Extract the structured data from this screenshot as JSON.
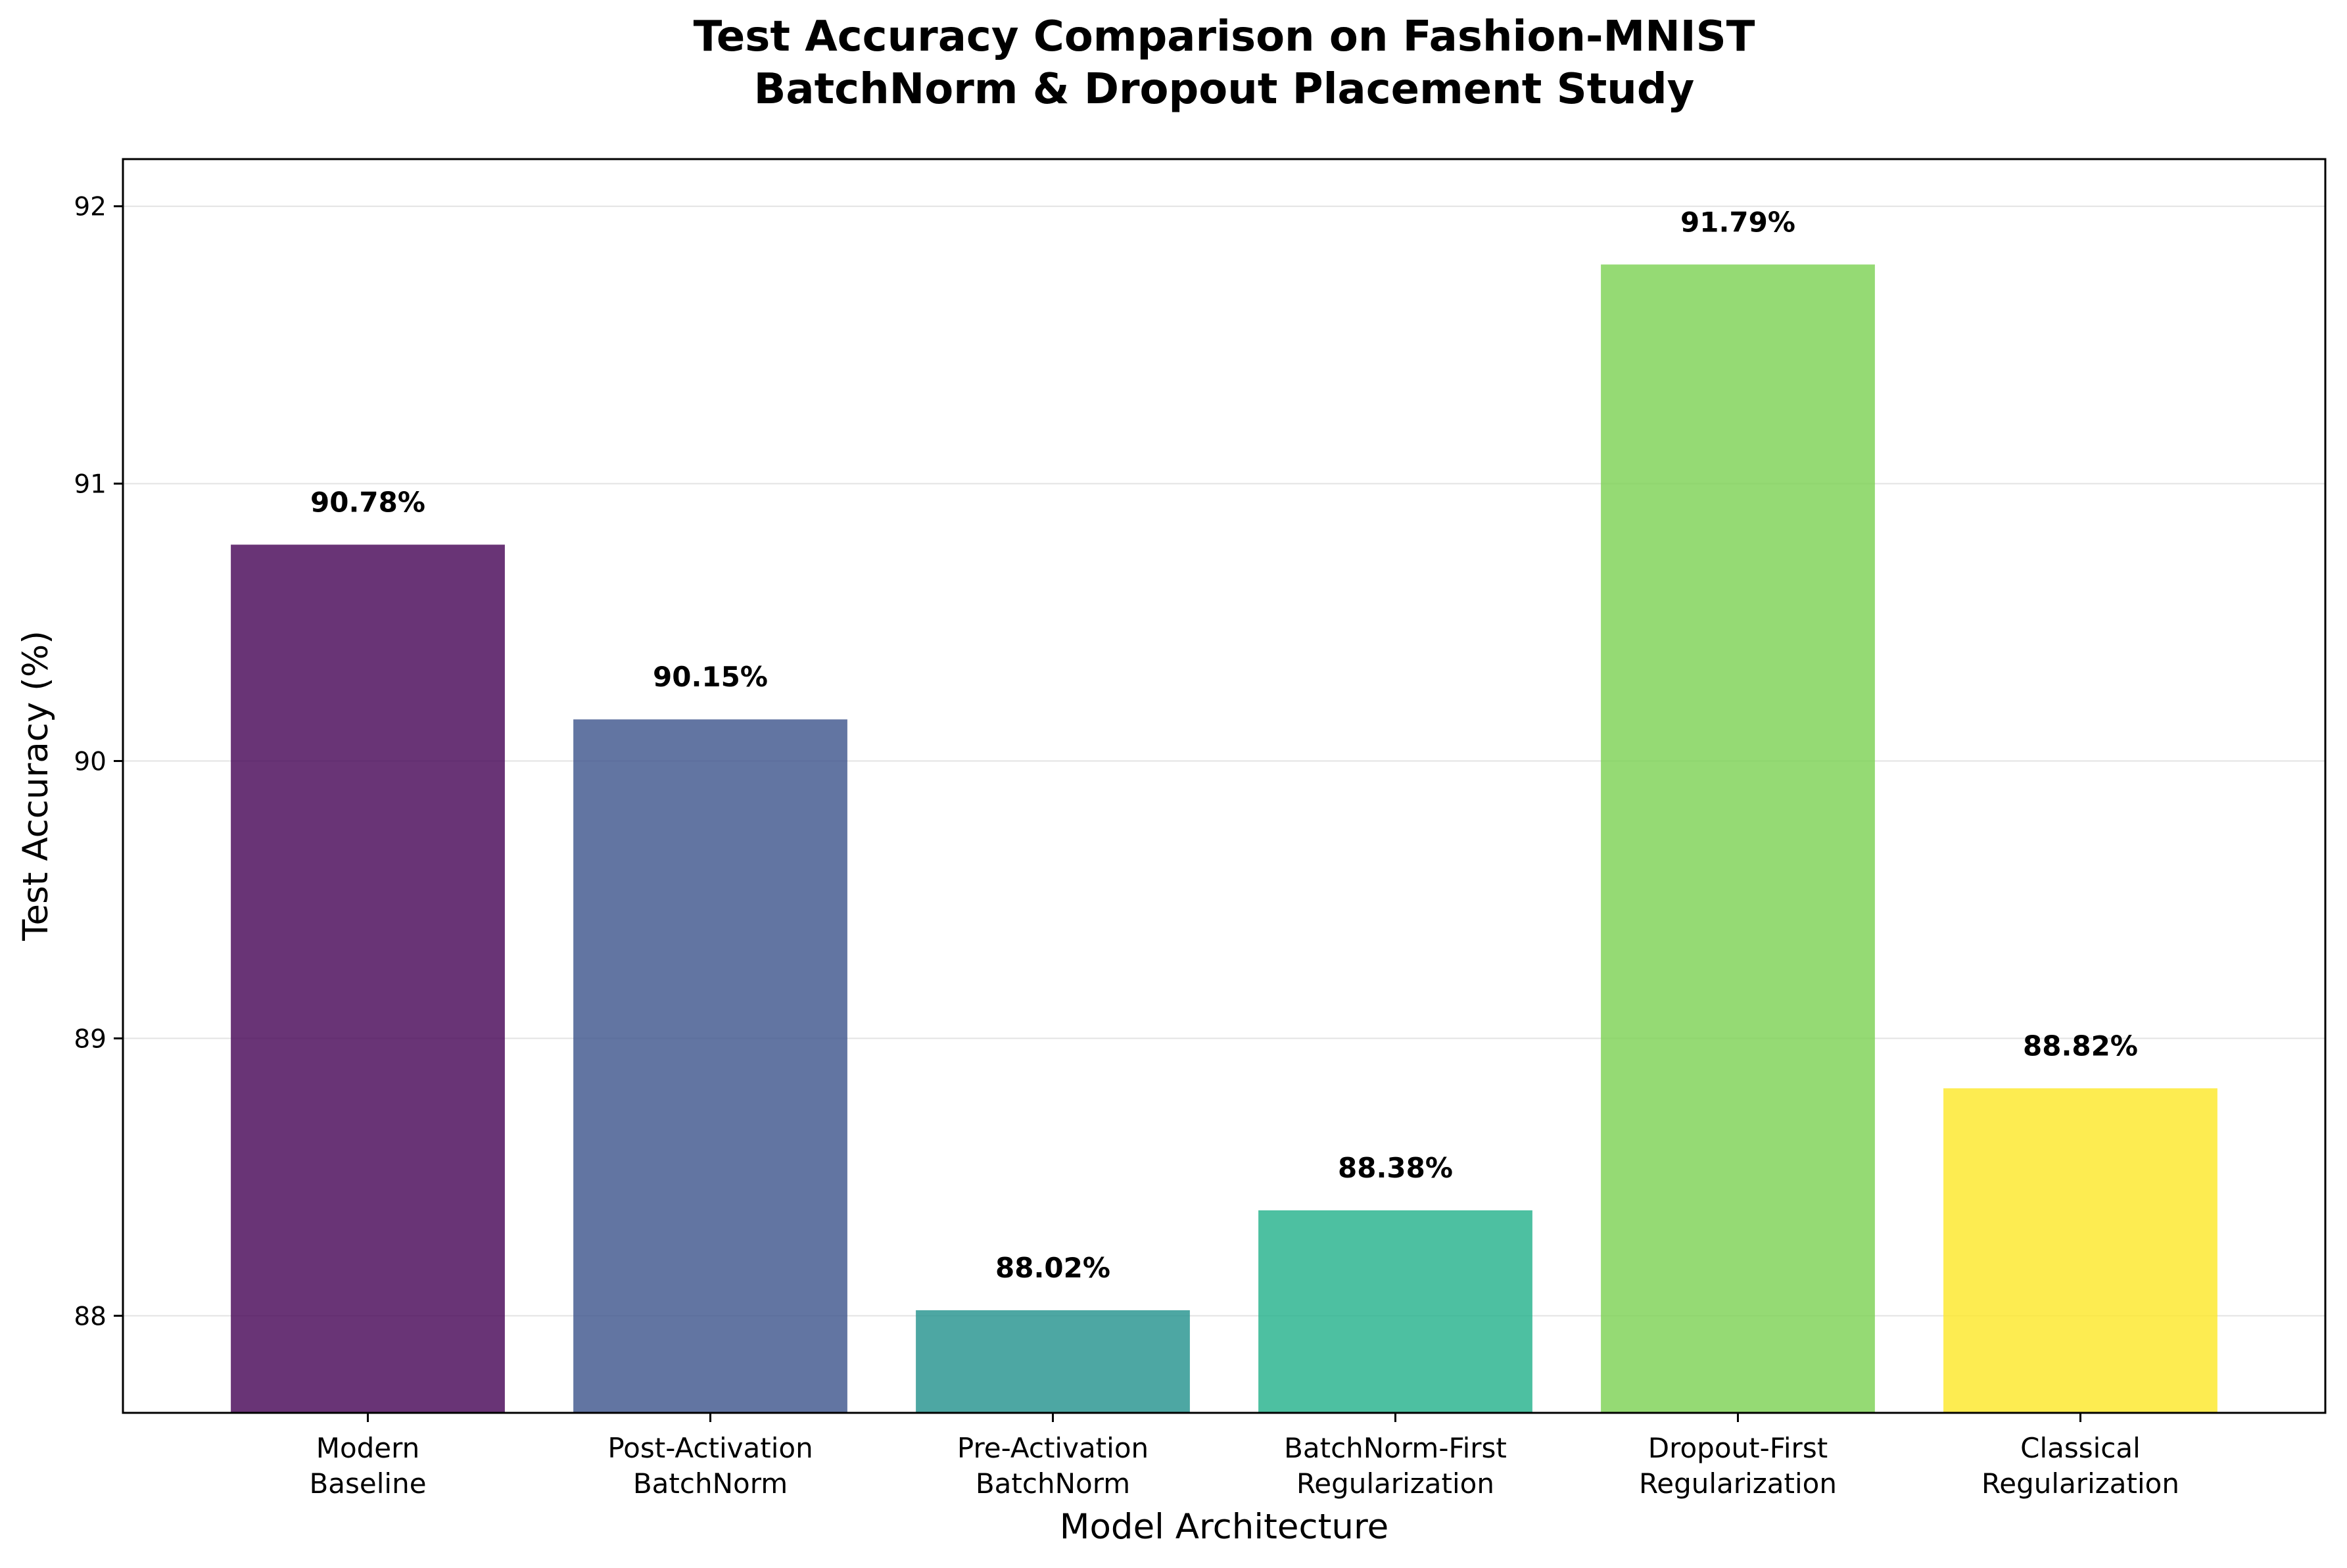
{
  "chart_data": {
    "type": "bar",
    "title": "Test Accuracy Comparison on Fashion-MNIST",
    "subtitle": "BatchNorm & Dropout Placement Study",
    "xlabel": "Model Architecture",
    "ylabel": "Test Accuracy (%)",
    "ylim": [
      87.65,
      92.17
    ],
    "yticks": [
      "88",
      "89",
      "90",
      "91",
      "92"
    ],
    "grid": "horizontal",
    "legend": "none",
    "categories": [
      [
        "Modern",
        "Baseline"
      ],
      [
        "Post-Activation",
        "BatchNorm"
      ],
      [
        "Pre-Activation",
        "BatchNorm"
      ],
      [
        "BatchNorm-First",
        "Regularization"
      ],
      [
        "Dropout-First",
        "Regularization"
      ],
      [
        "Classical",
        "Regularization"
      ]
    ],
    "values": [
      90.78,
      90.15,
      88.02,
      88.38,
      91.79,
      88.82
    ],
    "value_labels": [
      "90.78%",
      "90.15%",
      "88.02%",
      "88.38%",
      "91.79%",
      "88.82%"
    ],
    "colors": [
      "#440154",
      "#3b528b",
      "#21918c",
      "#21b08a",
      "#7ad151",
      "#fde725"
    ]
  }
}
